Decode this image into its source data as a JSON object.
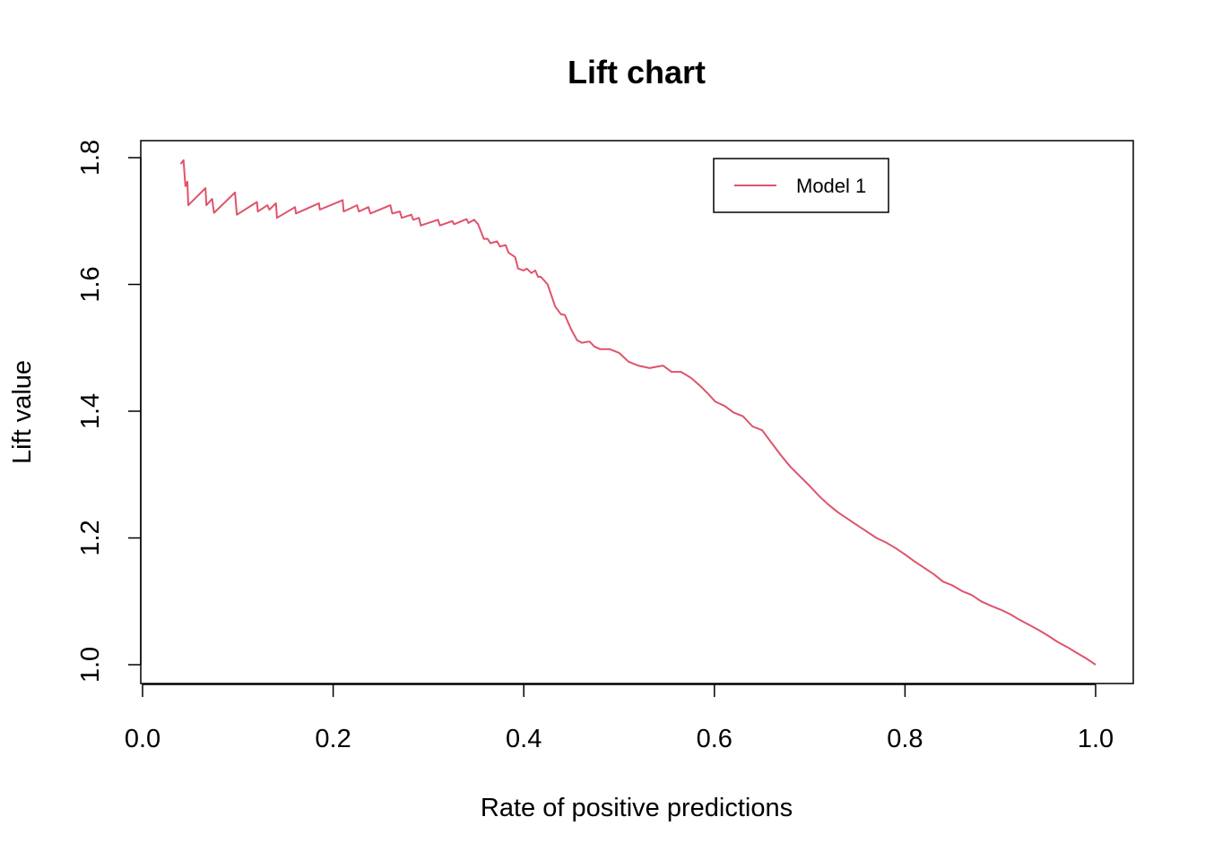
{
  "chart_data": {
    "type": "line",
    "title": "Lift chart",
    "xlabel": "Rate of positive predictions",
    "ylabel": "Lift value",
    "xlim": [
      0.0,
      1.0
    ],
    "ylim": [
      1.0,
      1.8
    ],
    "x_ticks": [
      "0.0",
      "0.2",
      "0.4",
      "0.6",
      "0.8",
      "1.0"
    ],
    "y_ticks": [
      "1.0",
      "1.2",
      "1.4",
      "1.6",
      "1.8"
    ],
    "grid": false,
    "legend_position": "top-right",
    "series": [
      {
        "name": "Model 1",
        "color": "#DF536B",
        "points": [
          [
            0.04,
            1.79
          ],
          [
            0.043,
            1.796
          ],
          [
            0.045,
            1.755
          ],
          [
            0.047,
            1.762
          ],
          [
            0.048,
            1.725
          ],
          [
            0.066,
            1.752
          ],
          [
            0.067,
            1.725
          ],
          [
            0.073,
            1.735
          ],
          [
            0.075,
            1.713
          ],
          [
            0.097,
            1.745
          ],
          [
            0.099,
            1.71
          ],
          [
            0.12,
            1.73
          ],
          [
            0.121,
            1.715
          ],
          [
            0.131,
            1.725
          ],
          [
            0.133,
            1.718
          ],
          [
            0.14,
            1.728
          ],
          [
            0.141,
            1.705
          ],
          [
            0.16,
            1.722
          ],
          [
            0.161,
            1.712
          ],
          [
            0.185,
            1.728
          ],
          [
            0.186,
            1.718
          ],
          [
            0.21,
            1.733
          ],
          [
            0.211,
            1.715
          ],
          [
            0.225,
            1.725
          ],
          [
            0.227,
            1.715
          ],
          [
            0.237,
            1.722
          ],
          [
            0.239,
            1.712
          ],
          [
            0.26,
            1.725
          ],
          [
            0.262,
            1.712
          ],
          [
            0.27,
            1.715
          ],
          [
            0.272,
            1.705
          ],
          [
            0.282,
            1.71
          ],
          [
            0.284,
            1.702
          ],
          [
            0.29,
            1.705
          ],
          [
            0.292,
            1.693
          ],
          [
            0.31,
            1.702
          ],
          [
            0.312,
            1.693
          ],
          [
            0.325,
            1.7
          ],
          [
            0.327,
            1.695
          ],
          [
            0.34,
            1.703
          ],
          [
            0.342,
            1.697
          ],
          [
            0.348,
            1.702
          ],
          [
            0.352,
            1.695
          ],
          [
            0.356,
            1.68
          ],
          [
            0.358,
            1.672
          ],
          [
            0.362,
            1.672
          ],
          [
            0.365,
            1.665
          ],
          [
            0.372,
            1.668
          ],
          [
            0.375,
            1.66
          ],
          [
            0.381,
            1.662
          ],
          [
            0.384,
            1.65
          ],
          [
            0.391,
            1.643
          ],
          [
            0.394,
            1.625
          ],
          [
            0.4,
            1.622
          ],
          [
            0.403,
            1.625
          ],
          [
            0.408,
            1.618
          ],
          [
            0.412,
            1.622
          ],
          [
            0.415,
            1.612
          ],
          [
            0.418,
            1.612
          ],
          [
            0.425,
            1.6
          ],
          [
            0.433,
            1.565
          ],
          [
            0.439,
            1.553
          ],
          [
            0.443,
            1.552
          ],
          [
            0.45,
            1.528
          ],
          [
            0.456,
            1.512
          ],
          [
            0.461,
            1.508
          ],
          [
            0.469,
            1.51
          ],
          [
            0.474,
            1.502
          ],
          [
            0.48,
            1.498
          ],
          [
            0.49,
            1.498
          ],
          [
            0.5,
            1.492
          ],
          [
            0.51,
            1.478
          ],
          [
            0.52,
            1.472
          ],
          [
            0.532,
            1.468
          ],
          [
            0.546,
            1.472
          ],
          [
            0.555,
            1.462
          ],
          [
            0.565,
            1.462
          ],
          [
            0.576,
            1.452
          ],
          [
            0.585,
            1.44
          ],
          [
            0.593,
            1.428
          ],
          [
            0.601,
            1.415
          ],
          [
            0.611,
            1.408
          ],
          [
            0.62,
            1.398
          ],
          [
            0.63,
            1.392
          ],
          [
            0.64,
            1.376
          ],
          [
            0.65,
            1.37
          ],
          [
            0.66,
            1.35
          ],
          [
            0.67,
            1.33
          ],
          [
            0.68,
            1.312
          ],
          [
            0.69,
            1.297
          ],
          [
            0.7,
            1.282
          ],
          [
            0.71,
            1.266
          ],
          [
            0.72,
            1.252
          ],
          [
            0.73,
            1.24
          ],
          [
            0.74,
            1.23
          ],
          [
            0.75,
            1.22
          ],
          [
            0.76,
            1.21
          ],
          [
            0.77,
            1.2
          ],
          [
            0.78,
            1.193
          ],
          [
            0.79,
            1.184
          ],
          [
            0.8,
            1.174
          ],
          [
            0.81,
            1.163
          ],
          [
            0.82,
            1.153
          ],
          [
            0.83,
            1.143
          ],
          [
            0.84,
            1.131
          ],
          [
            0.85,
            1.125
          ],
          [
            0.86,
            1.116
          ],
          [
            0.87,
            1.11
          ],
          [
            0.88,
            1.1
          ],
          [
            0.89,
            1.093
          ],
          [
            0.9,
            1.087
          ],
          [
            0.91,
            1.08
          ],
          [
            0.92,
            1.071
          ],
          [
            0.93,
            1.063
          ],
          [
            0.94,
            1.055
          ],
          [
            0.95,
            1.046
          ],
          [
            0.96,
            1.036
          ],
          [
            0.97,
            1.028
          ],
          [
            0.98,
            1.019
          ],
          [
            0.99,
            1.01
          ],
          [
            1.0,
            1.0
          ]
        ]
      }
    ]
  }
}
